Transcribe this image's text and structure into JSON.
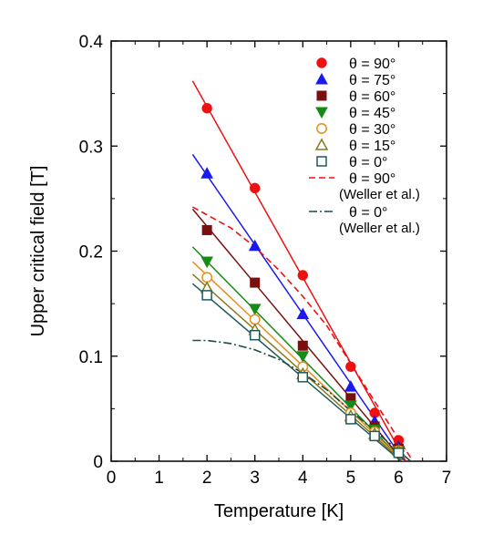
{
  "chart_data": {
    "type": "scatter",
    "xlabel": "Temperature  [K]",
    "ylabel": "Upper critical field  [T]",
    "xlim": [
      0,
      7
    ],
    "ylim": [
      0,
      0.4
    ],
    "xticks": [
      "0",
      "1",
      "2",
      "3",
      "4",
      "5",
      "6",
      "7"
    ],
    "yticks": [
      "0",
      "0.1",
      "0.2",
      "0.3",
      "0.4"
    ],
    "grid": false,
    "legend_position": "top-right",
    "series": [
      {
        "name": "θ = 90°",
        "marker": "circle-filled",
        "color": "#ee1111",
        "x": [
          2,
          3,
          4,
          5,
          5.5,
          6
        ],
        "y": [
          0.336,
          0.26,
          0.177,
          0.09,
          0.046,
          0.02
        ],
        "fit_x": [
          1.7,
          6.15
        ],
        "fit_y": [
          0.362,
          0.0
        ]
      },
      {
        "name": "θ = 75°",
        "marker": "triangle-up-filled",
        "color": "#1a1aee",
        "x": [
          2,
          3,
          4,
          5,
          5.5,
          6
        ],
        "y": [
          0.274,
          0.205,
          0.14,
          0.071,
          0.038,
          0.014
        ],
        "fit_x": [
          1.7,
          6.12
        ],
        "fit_y": [
          0.292,
          0.0
        ]
      },
      {
        "name": "θ = 60°",
        "marker": "square-filled",
        "color": "#7a0f0f",
        "x": [
          2,
          3,
          4,
          5,
          5.5,
          6
        ],
        "y": [
          0.22,
          0.17,
          0.11,
          0.06,
          0.033,
          0.012
        ],
        "fit_x": [
          1.7,
          6.1
        ],
        "fit_y": [
          0.24,
          0.0
        ]
      },
      {
        "name": "θ = 45°",
        "marker": "triangle-down-filled",
        "color": "#178a17",
        "x": [
          2,
          3,
          4,
          5,
          5.5,
          6
        ],
        "y": [
          0.19,
          0.145,
          0.1,
          0.053,
          0.03,
          0.01
        ],
        "fit_x": [
          1.7,
          6.1
        ],
        "fit_y": [
          0.204,
          0.0
        ]
      },
      {
        "name": "θ = 30°",
        "marker": "circle-open",
        "color": "#e98d1c",
        "x": [
          2,
          3,
          4,
          5,
          5.5,
          6
        ],
        "y": [
          0.175,
          0.135,
          0.09,
          0.046,
          0.028,
          0.01
        ],
        "fit_x": [
          1.7,
          6.1
        ],
        "fit_y": [
          0.19,
          0.0
        ]
      },
      {
        "name": "θ = 15°",
        "marker": "triangle-up-open",
        "color": "#8a7a1a",
        "x": [
          2,
          3,
          4,
          5,
          5.5,
          6
        ],
        "y": [
          0.165,
          0.125,
          0.083,
          0.043,
          0.026,
          0.01
        ],
        "fit_x": [
          1.7,
          6.08
        ],
        "fit_y": [
          0.178,
          0.0
        ]
      },
      {
        "name": "θ = 0°",
        "marker": "square-open",
        "color": "#1f5a5a",
        "x": [
          2,
          3,
          4,
          5,
          5.5,
          6
        ],
        "y": [
          0.158,
          0.12,
          0.08,
          0.04,
          0.024,
          0.008
        ],
        "fit_x": [
          1.7,
          6.05
        ],
        "fit_y": [
          0.169,
          0.0
        ]
      }
    ],
    "reference_curves": [
      {
        "name": "θ = 90°",
        "source": "(Weller et al.)",
        "style": "dashed",
        "color": "#ee1111",
        "x": [
          1.7,
          2.5,
          3.0,
          3.5,
          4.0,
          4.5,
          5.0,
          5.5,
          6.0,
          6.3
        ],
        "y": [
          0.242,
          0.222,
          0.204,
          0.182,
          0.157,
          0.129,
          0.093,
          0.057,
          0.021,
          0.0
        ]
      },
      {
        "name": "θ = 0°",
        "source": "(Weller et al.)",
        "style": "dash-dot",
        "color": "#1f4a4a",
        "x": [
          1.7,
          2.0,
          2.5,
          3.0,
          3.5,
          4.0,
          4.5,
          5.0,
          5.5,
          6.0,
          6.25
        ],
        "y": [
          0.115,
          0.115,
          0.112,
          0.106,
          0.097,
          0.084,
          0.068,
          0.048,
          0.029,
          0.01,
          0.0
        ]
      }
    ]
  }
}
